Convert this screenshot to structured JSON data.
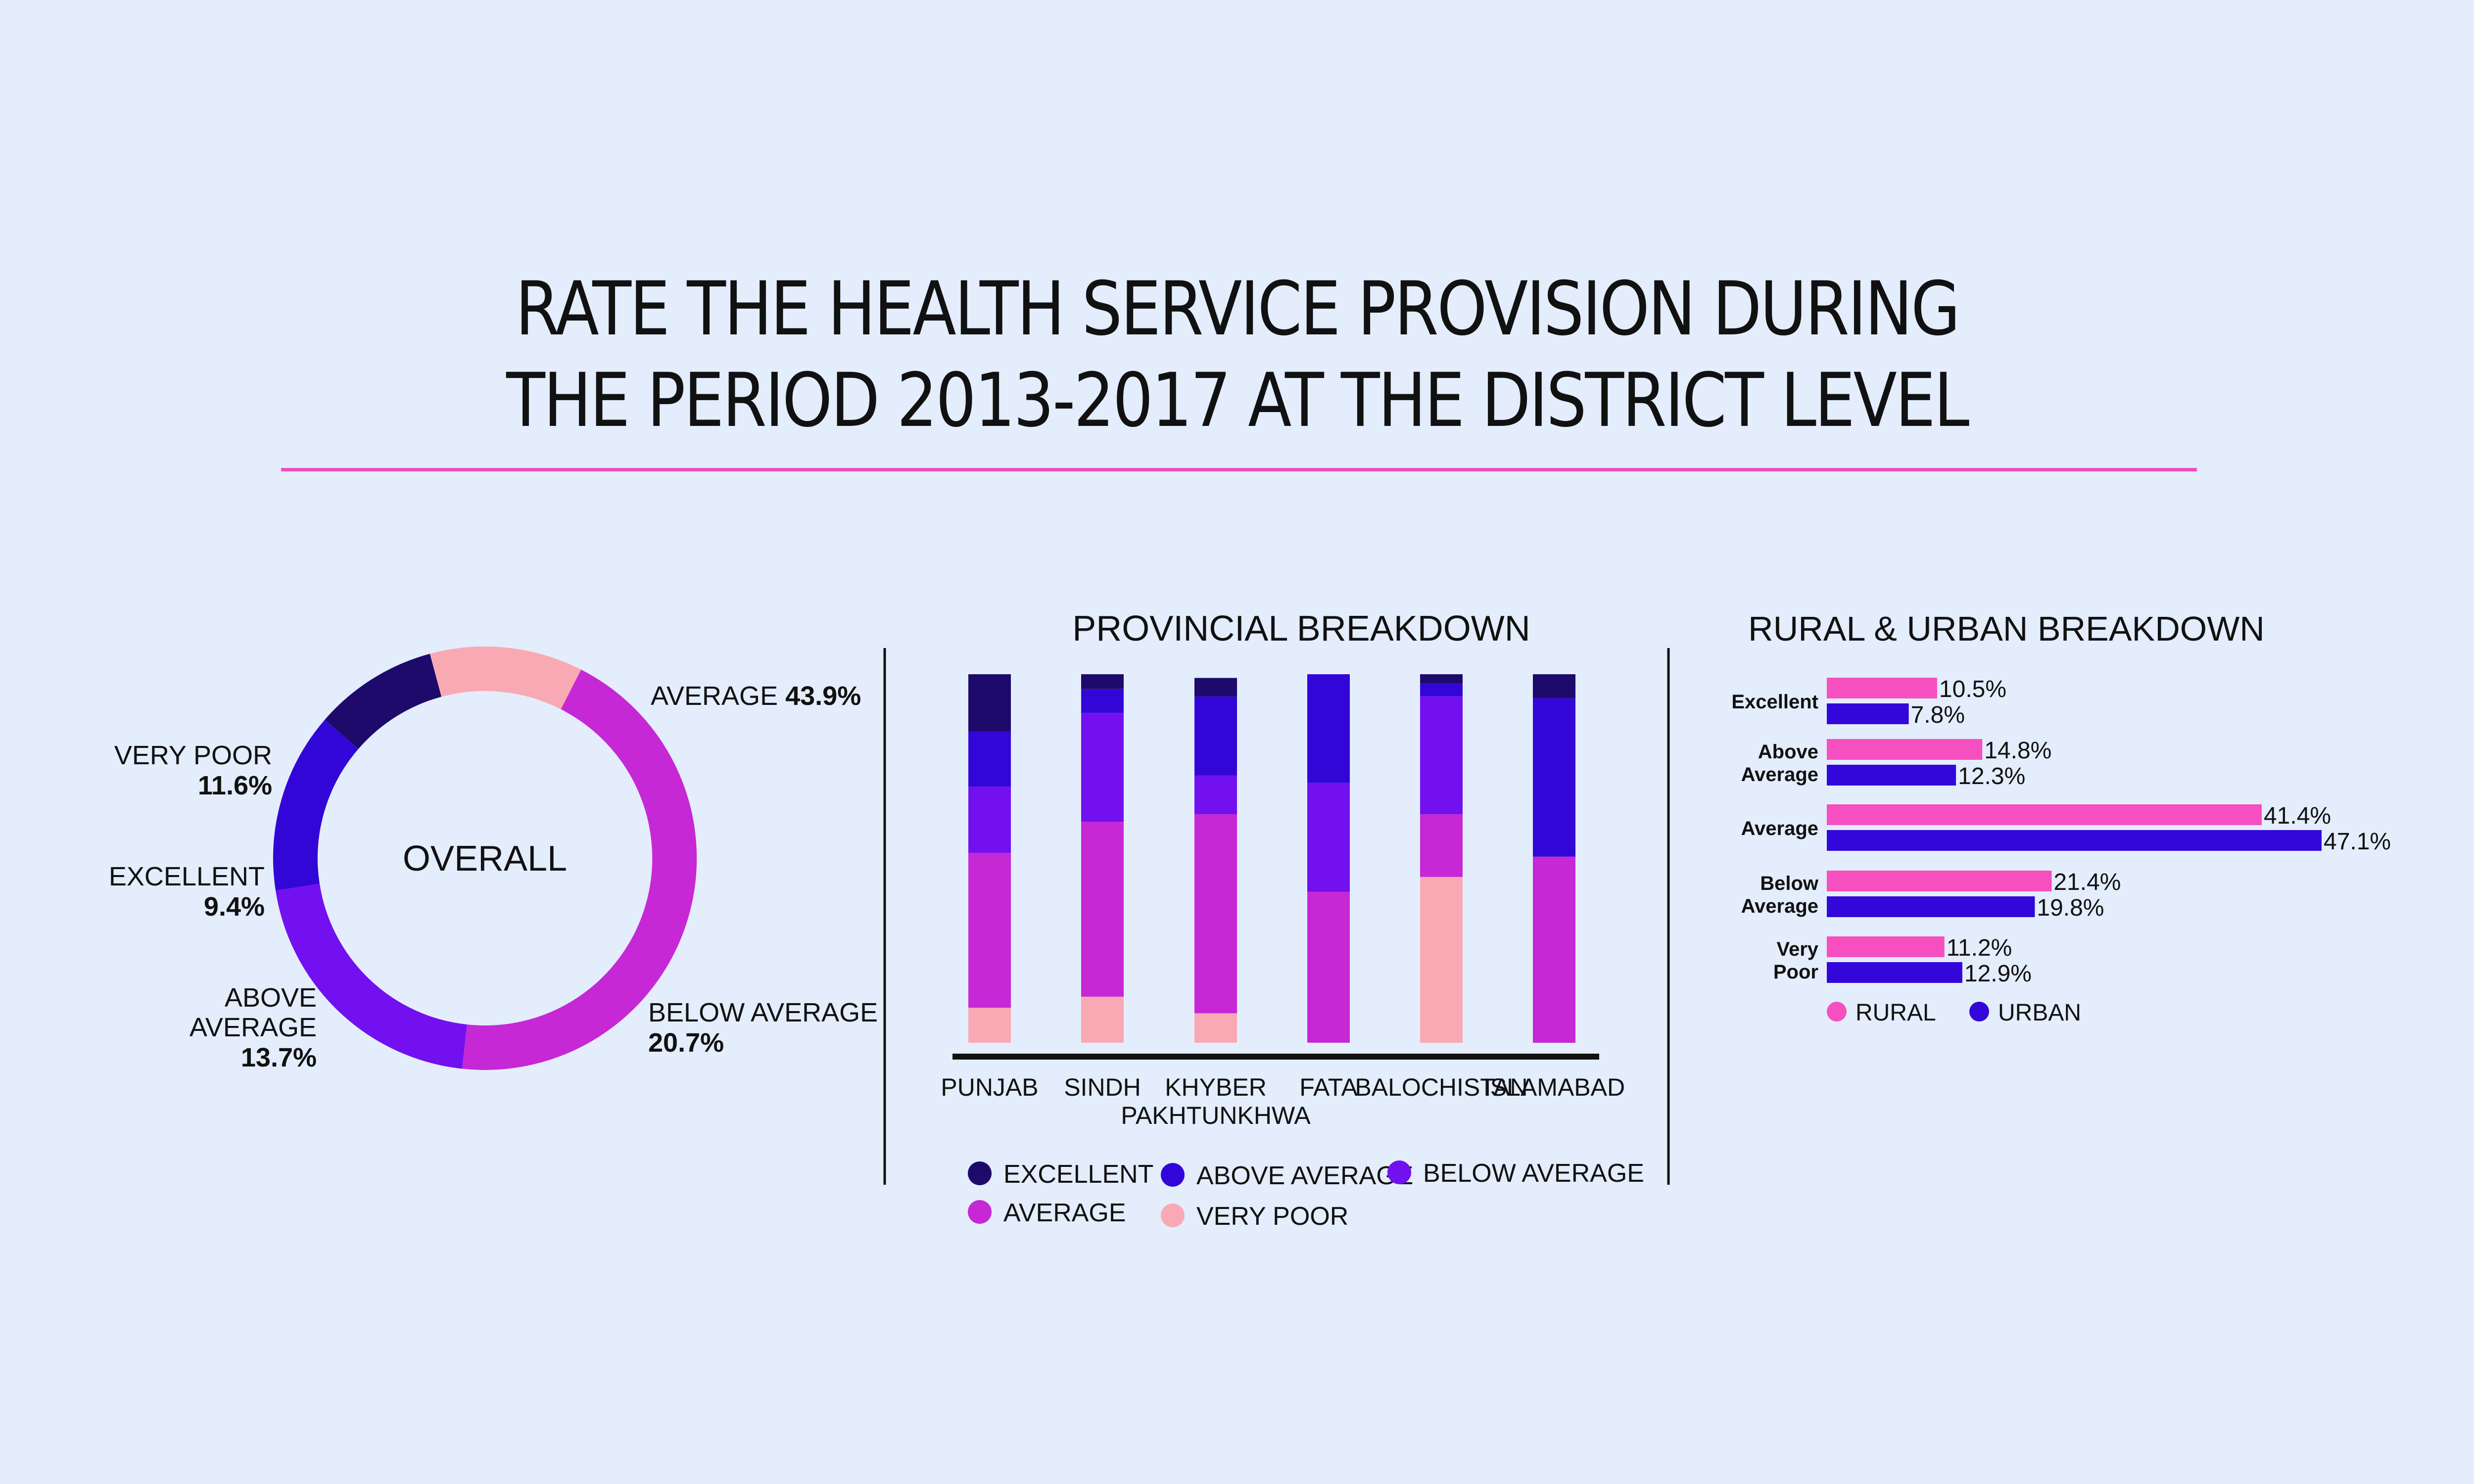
{
  "title": {
    "line1": "RATE THE HEALTH SERVICE PROVISION DURING",
    "line2": "THE PERIOD 2013-2017 AT THE DISTRICT LEVEL"
  },
  "colors": {
    "background": "#e3edfc",
    "rule": "#ee4ec2",
    "excellent": "#1d0a6a",
    "above_average": "#3306d8",
    "below_average": "#7210ef",
    "average": "#c628d6",
    "very_poor": "#f9a9b3",
    "rural": "#f64fc0",
    "urban": "#3307d9"
  },
  "chart_data": [
    {
      "type": "pie",
      "title": "OVERALL",
      "slices": [
        {
          "key": "average",
          "name": "AVERAGE",
          "value": 43.9,
          "label": "43.9%"
        },
        {
          "key": "below_average",
          "name": "BELOW AVERAGE",
          "value": 20.7,
          "label": "20.7%"
        },
        {
          "key": "above_average",
          "name": "ABOVE AVERAGE",
          "line1": "ABOVE",
          "line2": "AVERAGE",
          "value": 13.7,
          "label": "13.7%"
        },
        {
          "key": "excellent",
          "name": "EXCELLENT",
          "value": 9.4,
          "label": "9.4%"
        },
        {
          "key": "very_poor",
          "name": "VERY POOR",
          "value": 11.6,
          "label": "11.6%"
        }
      ]
    },
    {
      "type": "bar",
      "stacked": true,
      "title": "PROVINCIAL BREAKDOWN",
      "categories": [
        {
          "line1": "PUNJAB",
          "line2": ""
        },
        {
          "line1": "SINDH",
          "line2": ""
        },
        {
          "line1": "KHYBER",
          "line2": "PAKHTUNKHWA"
        },
        {
          "line1": "FATA",
          "line2": ""
        },
        {
          "line1": "BALOCHISTAN",
          "line2": ""
        },
        {
          "line1": "ISLAMABAD",
          "line2": ""
        }
      ],
      "series": [
        {
          "key": "very_poor",
          "name": "VERY POOR",
          "values": [
            9.5,
            12.5,
            8,
            0,
            45,
            0
          ]
        },
        {
          "key": "average",
          "name": "AVERAGE",
          "values": [
            42,
            47.5,
            54,
            41,
            17,
            50.5
          ]
        },
        {
          "key": "below_average",
          "name": "BELOW AVERAGE",
          "values": [
            18,
            29.5,
            10.5,
            29.5,
            32,
            0
          ]
        },
        {
          "key": "above_average",
          "name": "ABOVE AVERAGE",
          "values": [
            15,
            6.5,
            21.5,
            29.5,
            3.5,
            43
          ]
        },
        {
          "key": "excellent",
          "name": "EXCELLENT",
          "values": [
            15.5,
            4,
            5,
            0,
            2.5,
            6.5
          ]
        }
      ],
      "legend": [
        "excellent",
        "above_average",
        "below_average",
        "average",
        "very_poor"
      ],
      "ylim": [
        0,
        100
      ]
    },
    {
      "type": "bar",
      "orientation": "horizontal",
      "title": "RURAL & URBAN BREAKDOWN",
      "categories": [
        {
          "line1": "Excellent",
          "line2": ""
        },
        {
          "line1": "Above",
          "line2": "Average"
        },
        {
          "line1": "Average",
          "line2": ""
        },
        {
          "line1": "Below",
          "line2": "Average"
        },
        {
          "line1": "Very",
          "line2": "Poor"
        }
      ],
      "series": [
        {
          "key": "rural",
          "name": "RURAL",
          "values": [
            10.5,
            14.8,
            41.4,
            21.4,
            11.2
          ],
          "labels": [
            "10.5%",
            "14.8%",
            "41.4%",
            "21.4%",
            "11.2%"
          ]
        },
        {
          "key": "urban",
          "name": "URBAN",
          "values": [
            7.8,
            12.3,
            47.1,
            19.8,
            12.9
          ],
          "labels": [
            "7.8%",
            "12.3%",
            "47.1%",
            "19.8%",
            "12.9%"
          ]
        }
      ],
      "xlim": [
        0,
        50
      ]
    }
  ]
}
